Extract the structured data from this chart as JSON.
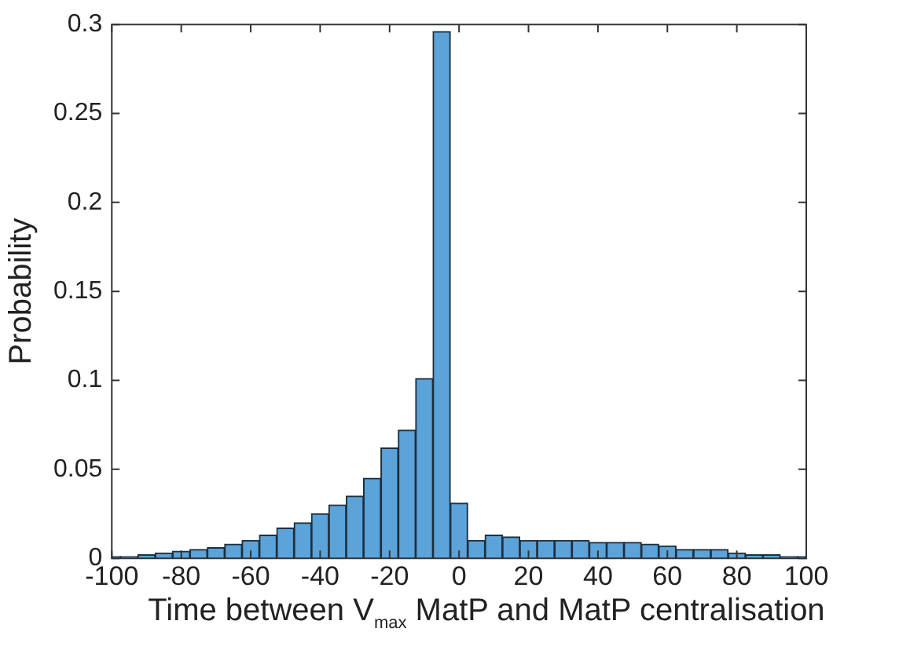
{
  "chart_data": {
    "type": "histogram",
    "xlabel": "Time between V$_{max}$ MatP and MatP centralisation",
    "ylabel": "Probability",
    "bins": [
      -100,
      -97.5,
      -92.5,
      -87.5,
      -82.5,
      -77.5,
      -72.5,
      -67.5,
      -62.5,
      -57.5,
      -52.5,
      -47.5,
      -42.5,
      -37.5,
      -32.5,
      -27.5,
      -22.5,
      -17.5,
      -12.5,
      -7.5,
      -2.5,
      2.5,
      7.5,
      12.5,
      17.5,
      22.5,
      27.5,
      32.5,
      37.5,
      42.5,
      47.5,
      52.5,
      57.5,
      62.5,
      67.5,
      72.5,
      77.5,
      82.5,
      87.5,
      92.5,
      97.5,
      100
    ],
    "values": [
      0.001,
      0.001,
      0.002,
      0.003,
      0.004,
      0.005,
      0.006,
      0.008,
      0.01,
      0.013,
      0.017,
      0.02,
      0.025,
      0.03,
      0.035,
      0.045,
      0.062,
      0.072,
      0.101,
      0.296,
      0.031,
      0.01,
      0.013,
      0.012,
      0.01,
      0.01,
      0.01,
      0.01,
      0.009,
      0.009,
      0.009,
      0.008,
      0.007,
      0.005,
      0.005,
      0.005,
      0.003,
      0.002,
      0.002,
      0.001,
      0.001
    ],
    "color": "#5ba3d9",
    "xlim": [
      -100,
      100
    ],
    "xticks": [
      -100,
      -80,
      -60,
      -40,
      -20,
      0,
      20,
      40,
      60,
      80,
      100
    ],
    "ylim": [
      0,
      0.3
    ],
    "yticks": [
      0,
      0.05,
      0.1,
      0.15,
      0.2,
      0.25,
      0.3
    ],
    "grid": false,
    "legend": false
  }
}
